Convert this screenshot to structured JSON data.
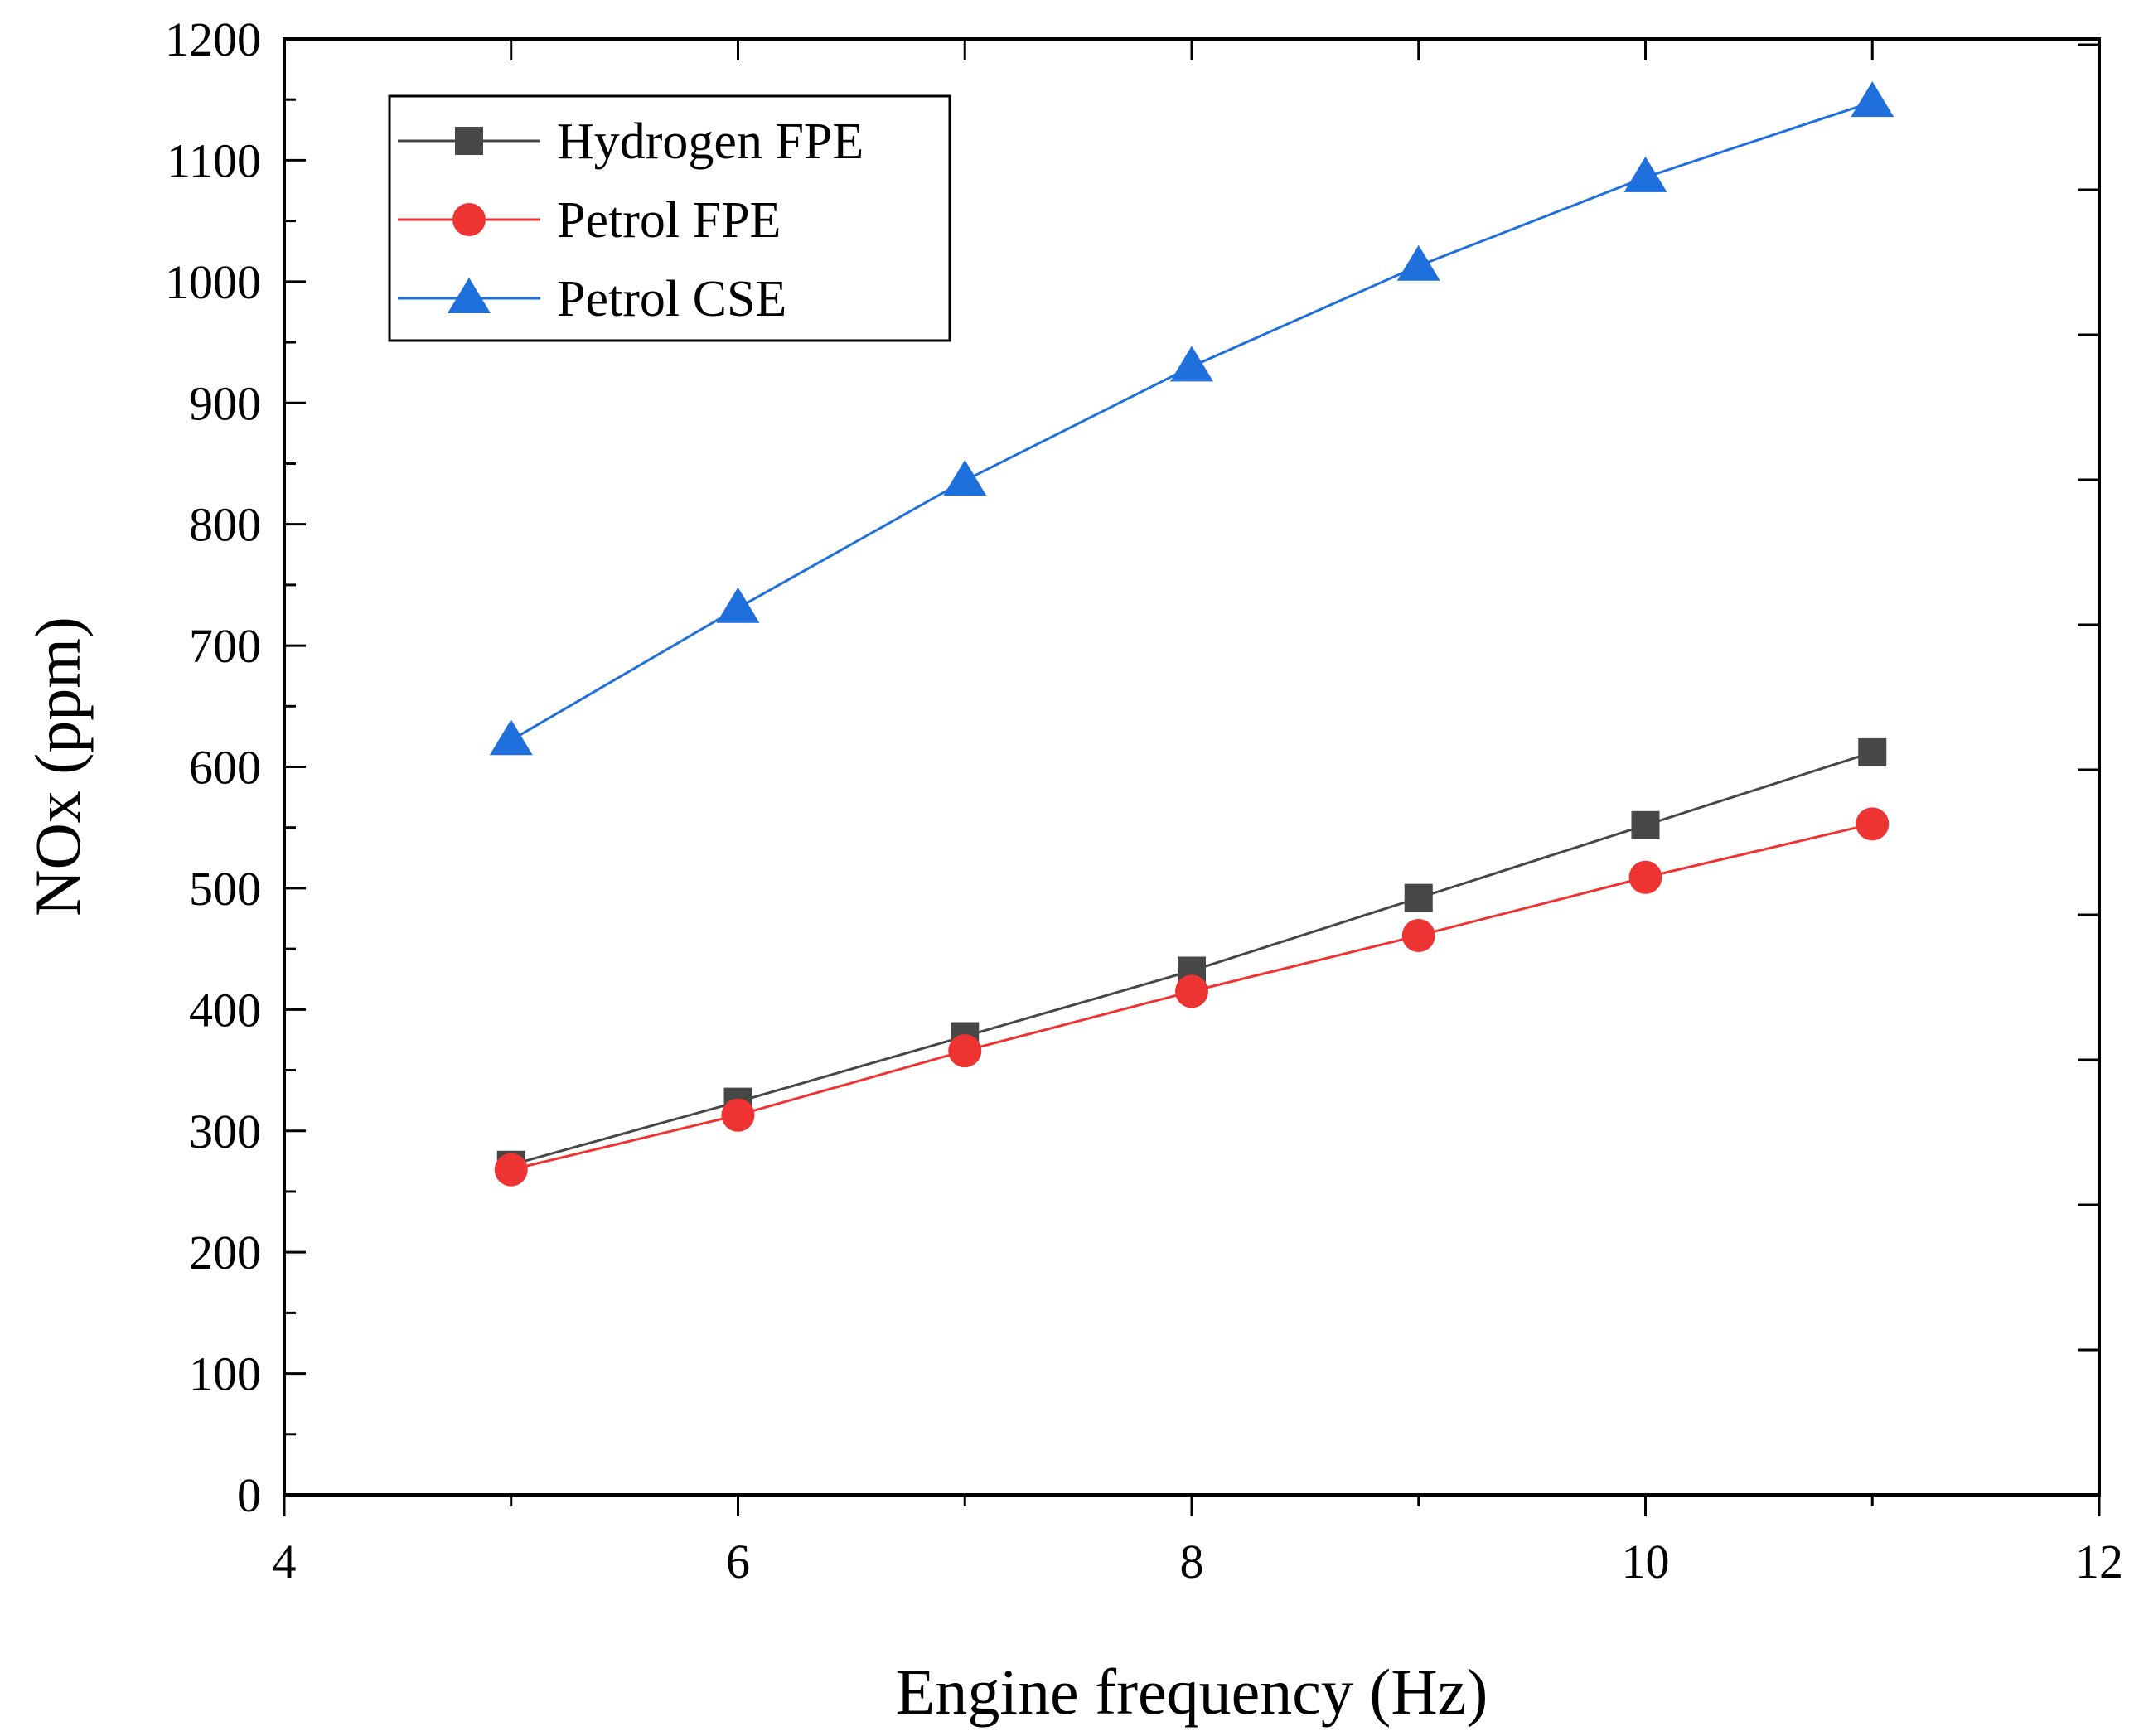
{
  "chart_data": {
    "type": "line",
    "title": "",
    "xlabel": "Engine frequency (Hz)",
    "ylabel": "NOx (ppm)",
    "xlim": [
      4,
      12
    ],
    "ylim": [
      0,
      1200
    ],
    "x_ticks": [
      "4",
      "6",
      "8",
      "10",
      "12"
    ],
    "y_ticks": [
      "0",
      "100",
      "200",
      "300",
      "400",
      "500",
      "600",
      "700",
      "800",
      "900",
      "1000",
      "1100",
      "1200"
    ],
    "grid": false,
    "legend_position": "top-left",
    "x": [
      5,
      6,
      7,
      8,
      9,
      10,
      11
    ],
    "series": [
      {
        "name": "Hydrogen FPE",
        "marker": "square",
        "color": "#474747",
        "values": [
          272,
          324,
          378,
          432,
          492,
          552,
          612
        ]
      },
      {
        "name": "Petrol FPE",
        "marker": "circle",
        "color": "#ee3333",
        "values": [
          268,
          313,
          366,
          415,
          461,
          509,
          553
        ]
      },
      {
        "name": "Petrol CSE",
        "marker": "triangle",
        "color": "#1f6fdc",
        "values": [
          622,
          731,
          836,
          930,
          1013,
          1086,
          1148
        ]
      }
    ]
  }
}
